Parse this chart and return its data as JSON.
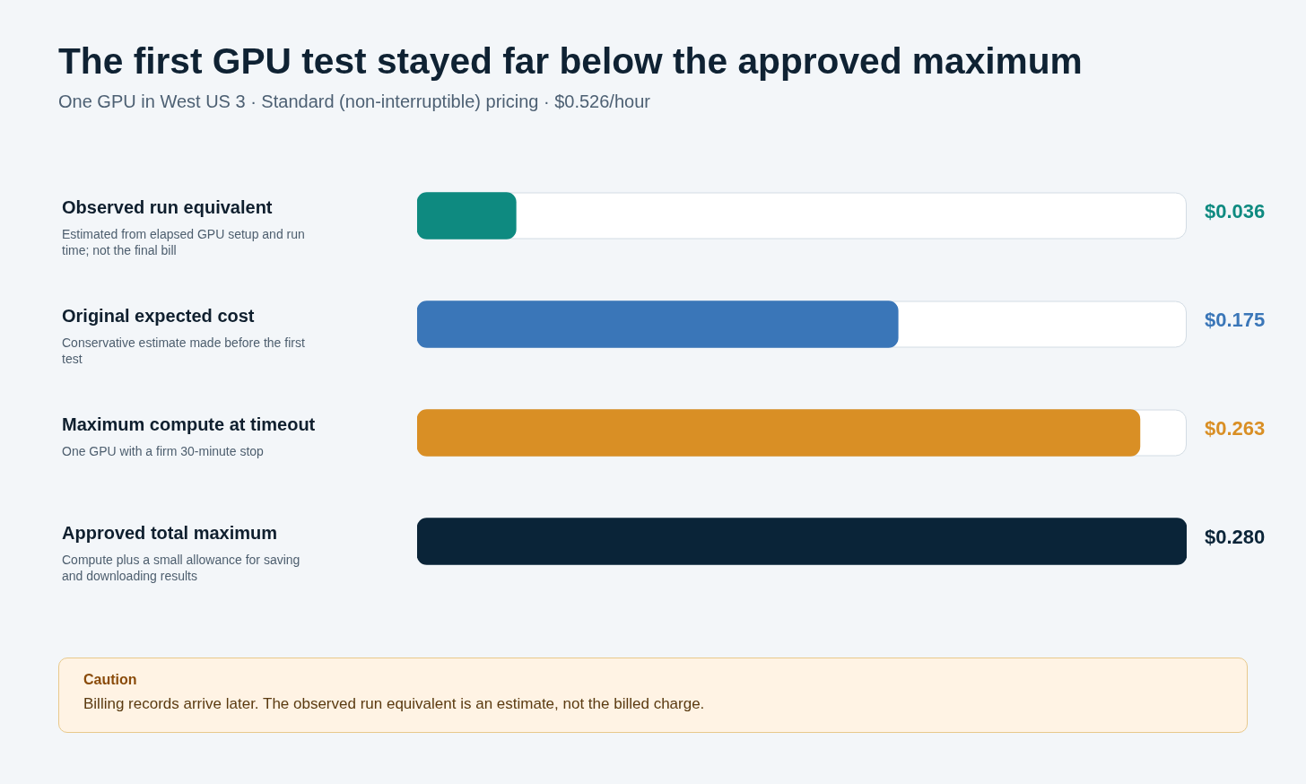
{
  "chart_data": {
    "type": "bar",
    "orientation": "horizontal",
    "title": "The first GPU test stayed far below the approved maximum",
    "subtitle": "One GPU in West US 3 · Standard (non-interruptible) pricing · $0.526/hour",
    "categories": [
      "Observed run equivalent",
      "Original expected cost",
      "Maximum compute at timeout",
      "Approved total maximum"
    ],
    "values": [
      0.036,
      0.175,
      0.263,
      0.28
    ],
    "colors": [
      "#0e8a80",
      "#3a76b8",
      "#d98f25",
      "#0a2438"
    ],
    "value_labels": [
      "$0.036",
      "$0.175",
      "$0.263",
      "$0.280"
    ],
    "xlim": [
      0,
      0.28
    ],
    "annotations": [
      "Estimated from elapsed GPU setup and run time; not the final bill",
      "Conservative estimate made before the first test",
      "One GPU with a firm 30-minute stop",
      "Compute plus a small allowance for saving and downloading results",
      "Caution",
      "Billing records arrive later. The observed run equivalent is an estimate, not the billed charge."
    ]
  }
}
